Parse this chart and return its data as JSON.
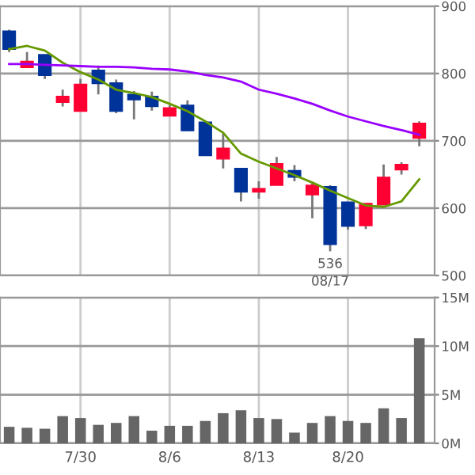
{
  "chart_data": [
    {
      "type": "candlestick",
      "categories": [
        null,
        null,
        null,
        null,
        null,
        null,
        null,
        null,
        null,
        null,
        null,
        null,
        null,
        null,
        null,
        null,
        null,
        null,
        null,
        null,
        null,
        null,
        null,
        null
      ],
      "ohlc": [
        [
          863,
          865,
          832,
          836
        ],
        [
          809,
          832,
          809,
          818
        ],
        [
          828,
          828,
          792,
          797
        ],
        [
          757,
          776,
          751,
          766
        ],
        [
          744,
          792,
          744,
          784
        ],
        [
          805,
          812,
          769,
          785
        ],
        [
          786,
          791,
          741,
          744
        ],
        [
          769,
          774,
          732,
          761
        ],
        [
          766,
          773,
          745,
          751
        ],
        [
          737,
          753,
          737,
          749
        ],
        [
          753,
          760,
          715,
          715
        ],
        [
          728,
          728,
          678,
          678
        ],
        [
          673,
          711,
          659,
          689
        ],
        [
          659,
          659,
          610,
          624
        ],
        [
          624,
          640,
          614,
          629
        ],
        [
          634,
          676,
          634,
          666
        ],
        [
          656,
          664,
          640,
          646
        ],
        [
          620,
          637,
          585,
          634
        ],
        [
          632,
          634,
          536,
          546
        ],
        [
          609,
          609,
          568,
          573
        ],
        [
          574,
          607,
          569,
          607
        ],
        [
          605,
          665,
          605,
          646
        ],
        [
          657,
          668,
          650,
          665
        ],
        [
          704,
          729,
          692,
          726
        ]
      ],
      "colors": [
        "#003399",
        "#ff0033",
        "#003399",
        "#ff0033",
        "#ff0033",
        "#003399",
        "#003399",
        "#003399",
        "#003399",
        "#ff0033",
        "#003399",
        "#003399",
        "#ff0033",
        "#003399",
        "#ff0033",
        "#ff0033",
        "#003399",
        "#ff0033",
        "#003399",
        "#003399",
        "#ff0033",
        "#ff0033",
        "#ff0033",
        "#ff0033"
      ],
      "series": [
        {
          "type": "line",
          "color": "#669900",
          "values": [
            836,
            841,
            834,
            816,
            802,
            791,
            776,
            771,
            765,
            755,
            744,
            729,
            712,
            681,
            669,
            659,
            649,
            638,
            626,
            615,
            604,
            602,
            610,
            643
          ]
        },
        {
          "type": "line",
          "color": "#9900ff",
          "values": [
            814,
            814,
            813,
            812,
            811,
            810,
            810,
            809,
            807,
            806,
            803,
            798,
            794,
            788,
            776,
            770,
            763,
            755,
            745,
            736,
            729,
            722,
            716,
            709
          ]
        }
      ],
      "ylim": [
        500,
        900
      ],
      "yticks": [
        500,
        600,
        700,
        800,
        900
      ],
      "grid": true,
      "tick_labels": "y",
      "annotations": [
        {
          "text": "536",
          "y": 536
        },
        "08/17"
      ]
    },
    {
      "type": "bar",
      "categories": [
        null,
        null,
        null,
        null,
        "7/30",
        null,
        null,
        null,
        null,
        "8/6",
        null,
        null,
        null,
        null,
        "8/13",
        null,
        null,
        null,
        null,
        "8/20",
        null,
        null,
        null,
        null
      ],
      "values": [
        1.7,
        1.6,
        1.5,
        2.8,
        2.6,
        1.9,
        2.1,
        2.8,
        1.3,
        1.8,
        1.8,
        2.3,
        3.1,
        3.4,
        2.6,
        2.5,
        1.1,
        2.1,
        2.8,
        2.3,
        2.1,
        3.6,
        2.6,
        10.8
      ],
      "color": "#666666",
      "ylim": [
        0,
        15
      ],
      "yticks": [
        {
          "value": 0,
          "label": "0M"
        },
        {
          "value": 5,
          "label": "5M"
        },
        {
          "value": 10,
          "label": "10M"
        },
        {
          "value": 15,
          "label": "15M"
        }
      ],
      "grid": true
    }
  ]
}
